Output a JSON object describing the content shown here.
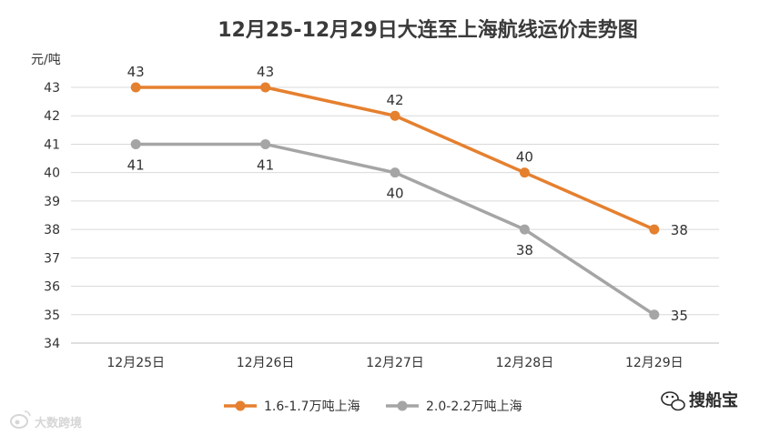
{
  "chart_data": {
    "type": "line",
    "title": "12月25-12月29日大连至上海航线运价走势图",
    "ylabel": "元/吨",
    "ylim": [
      34,
      43
    ],
    "yticks": [
      "34",
      "35",
      "36",
      "37",
      "38",
      "39",
      "40",
      "41",
      "42",
      "43"
    ],
    "categories": [
      "12月25日",
      "12月26日",
      "12月27日",
      "12月28日",
      "12月29日"
    ],
    "grid": true,
    "legend_position": "bottom",
    "series": [
      {
        "name": "1.6-1.7万吨上海",
        "color": "#e5802f",
        "values": [
          43,
          43,
          42,
          40,
          38
        ],
        "labels": [
          "43",
          "43",
          "42",
          "40",
          "38"
        ]
      },
      {
        "name": "2.0-2.2万吨上海",
        "color": "#a5a5a5",
        "values": [
          41,
          41,
          40,
          38,
          35
        ],
        "labels": [
          "41",
          "41",
          "40",
          "38",
          "35"
        ]
      }
    ]
  },
  "watermarks": {
    "left": "大数跨境",
    "right": "搜船宝",
    "right_icon": "wechat-icon",
    "left_icon": "weibo-icon"
  }
}
